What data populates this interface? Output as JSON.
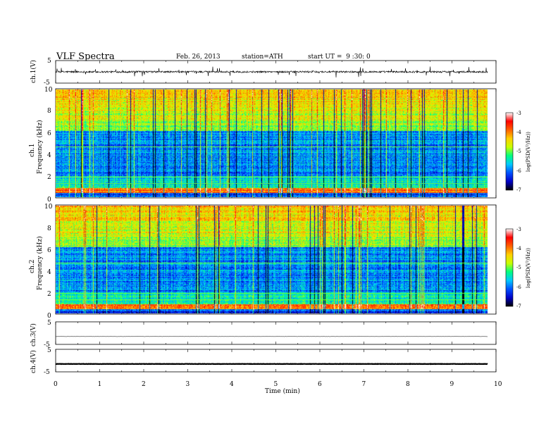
{
  "header": {
    "title": "VLF Spectra",
    "date": "Feb. 26, 2013",
    "station": "station=ATH",
    "start_ut": "start UT =  9 :30: 0"
  },
  "chart_data": [
    {
      "type": "line",
      "panel": "ch1-waveform",
      "ylabel": "ch.1(V)",
      "yticks": [
        "5",
        "-5"
      ],
      "ylim": [
        -5,
        5
      ],
      "x_range_min": [
        0,
        9.8
      ],
      "description_values": {
        "baseline": 0,
        "spike_max": 3,
        "spike_min": -3
      }
    },
    {
      "type": "heatmap",
      "panel": "ch1-spectrogram",
      "ylabel": "ch.1",
      "ylabel2": "Frequency (kHz)",
      "xlim": [
        0,
        10
      ],
      "ylim": [
        0,
        10
      ],
      "yticks": [
        "0",
        "2",
        "4",
        "6",
        "8",
        "10"
      ],
      "colorbar_label": "log(PSD(V²/Hz))",
      "colorbar_ticks": [
        "-3",
        "-4",
        "-5",
        "-6",
        "-7"
      ],
      "colorbar_range": [
        -7,
        -3
      ],
      "colors": [
        "#000000",
        "#0000c8",
        "#0050ff",
        "#00c8ff",
        "#00ff80",
        "#c8ff00",
        "#ffd000",
        "#ff6000",
        "#ff0000",
        "#ffffff"
      ]
    },
    {
      "type": "heatmap",
      "panel": "ch2-spectrogram",
      "ylabel": "ch.2",
      "ylabel2": "Frequency (kHz)",
      "xlim": [
        0,
        10
      ],
      "ylim": [
        0,
        10
      ],
      "yticks": [
        "0",
        "2",
        "4",
        "6",
        "8",
        "10"
      ],
      "colorbar_label": "log(PSD(V²/Hz))",
      "colorbar_ticks": [
        "-3",
        "-4",
        "-5",
        "-6",
        "-7"
      ],
      "colorbar_range": [
        -7,
        -3
      ]
    },
    {
      "type": "line",
      "panel": "ch3-waveform",
      "ylabel": "ch.3(V)",
      "yticks": [
        "5",
        "-5"
      ],
      "ylim": [
        -5,
        5
      ],
      "level": -1.5
    },
    {
      "type": "line",
      "panel": "ch4-waveform",
      "ylabel": "ch.4(V)",
      "yticks": [
        "5",
        "-5"
      ],
      "ylim": [
        -5,
        5
      ],
      "level": -1.5
    }
  ],
  "xaxis": {
    "label": "Time (min)",
    "ticks": [
      "0",
      "1",
      "2",
      "3",
      "4",
      "5",
      "6",
      "7",
      "8",
      "9",
      "10"
    ],
    "range": [
      0,
      10
    ],
    "data_end": 9.8
  }
}
